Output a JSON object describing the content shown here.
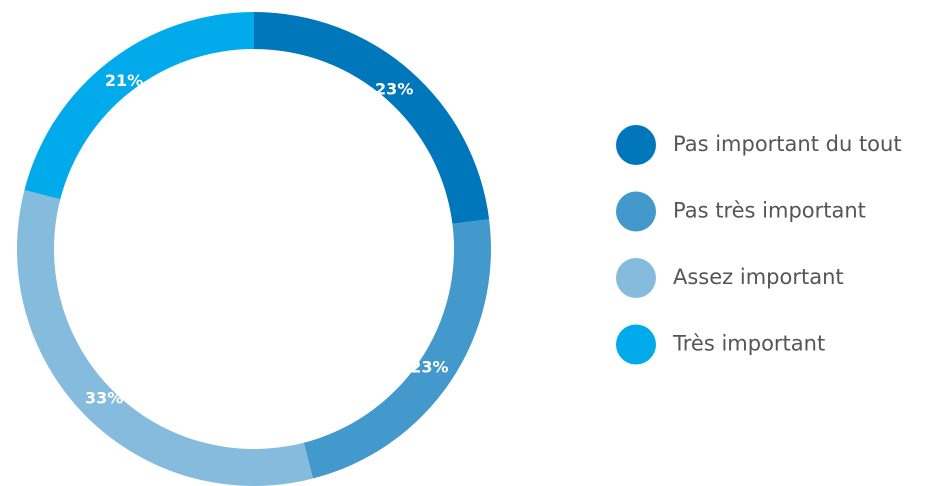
{
  "chart_data": {
    "type": "donut",
    "categories": [
      "Pas important du tout",
      "Pas très important",
      "Assez important",
      "Très important"
    ],
    "values": [
      23,
      23,
      33,
      21
    ],
    "value_labels": [
      "23%",
      "23%",
      "33%",
      "21%"
    ],
    "colors": [
      "#0077bb",
      "#4499cc",
      "#85bbdc",
      "#00aaeb"
    ],
    "legend": "right"
  }
}
